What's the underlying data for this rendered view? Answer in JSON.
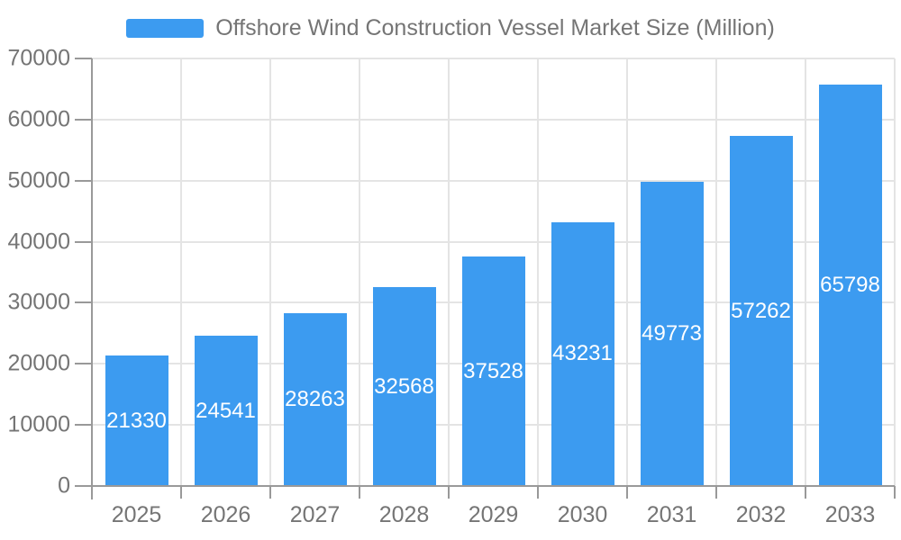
{
  "chart_data": {
    "type": "bar",
    "title": "Offshore Wind Construction Vessel Market Size (Million)",
    "legend_entries": [
      "Offshore Wind Construction Vessel Market Size (Million)"
    ],
    "legend_position": "top",
    "categories": [
      "2025",
      "2026",
      "2027",
      "2028",
      "2029",
      "2030",
      "2031",
      "2032",
      "2033"
    ],
    "values": [
      21330,
      24541,
      28263,
      32568,
      37528,
      43231,
      49773,
      57262,
      65798
    ],
    "xlabel": "",
    "ylabel": "",
    "ylim": [
      0,
      70000
    ],
    "y_ticks": [
      0,
      10000,
      20000,
      30000,
      40000,
      50000,
      60000,
      70000
    ],
    "grid": true,
    "value_label_placement": "inside-center"
  },
  "colors": {
    "bar": "#3C9BF0",
    "axis": "#999999",
    "grid": "#E4E4E4",
    "text": "#757575",
    "value_label": "#FFFFFF",
    "background": "#FFFFFF"
  }
}
